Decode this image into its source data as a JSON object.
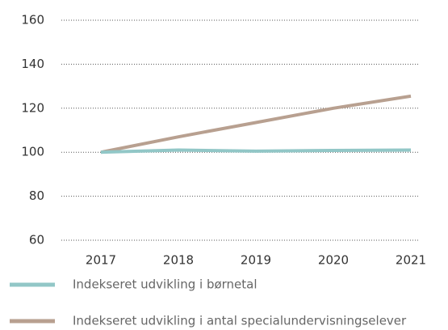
{
  "chart_data": {
    "type": "line",
    "categories": [
      "2017",
      "2018",
      "2019",
      "2020",
      "2021"
    ],
    "series": [
      {
        "name": "Indekseret udvikling i børnetal",
        "color": "#92c7c7",
        "values": [
          100,
          101,
          100.5,
          100.8,
          101
        ]
      },
      {
        "name": "Indekseret udvikling i antal specialundervisningselever",
        "color": "#b8a090",
        "values": [
          100,
          107,
          113.5,
          120,
          125.5
        ]
      }
    ],
    "ylim": [
      60,
      160
    ],
    "yticks": [
      60,
      80,
      100,
      120,
      140,
      160
    ],
    "grid": true
  }
}
